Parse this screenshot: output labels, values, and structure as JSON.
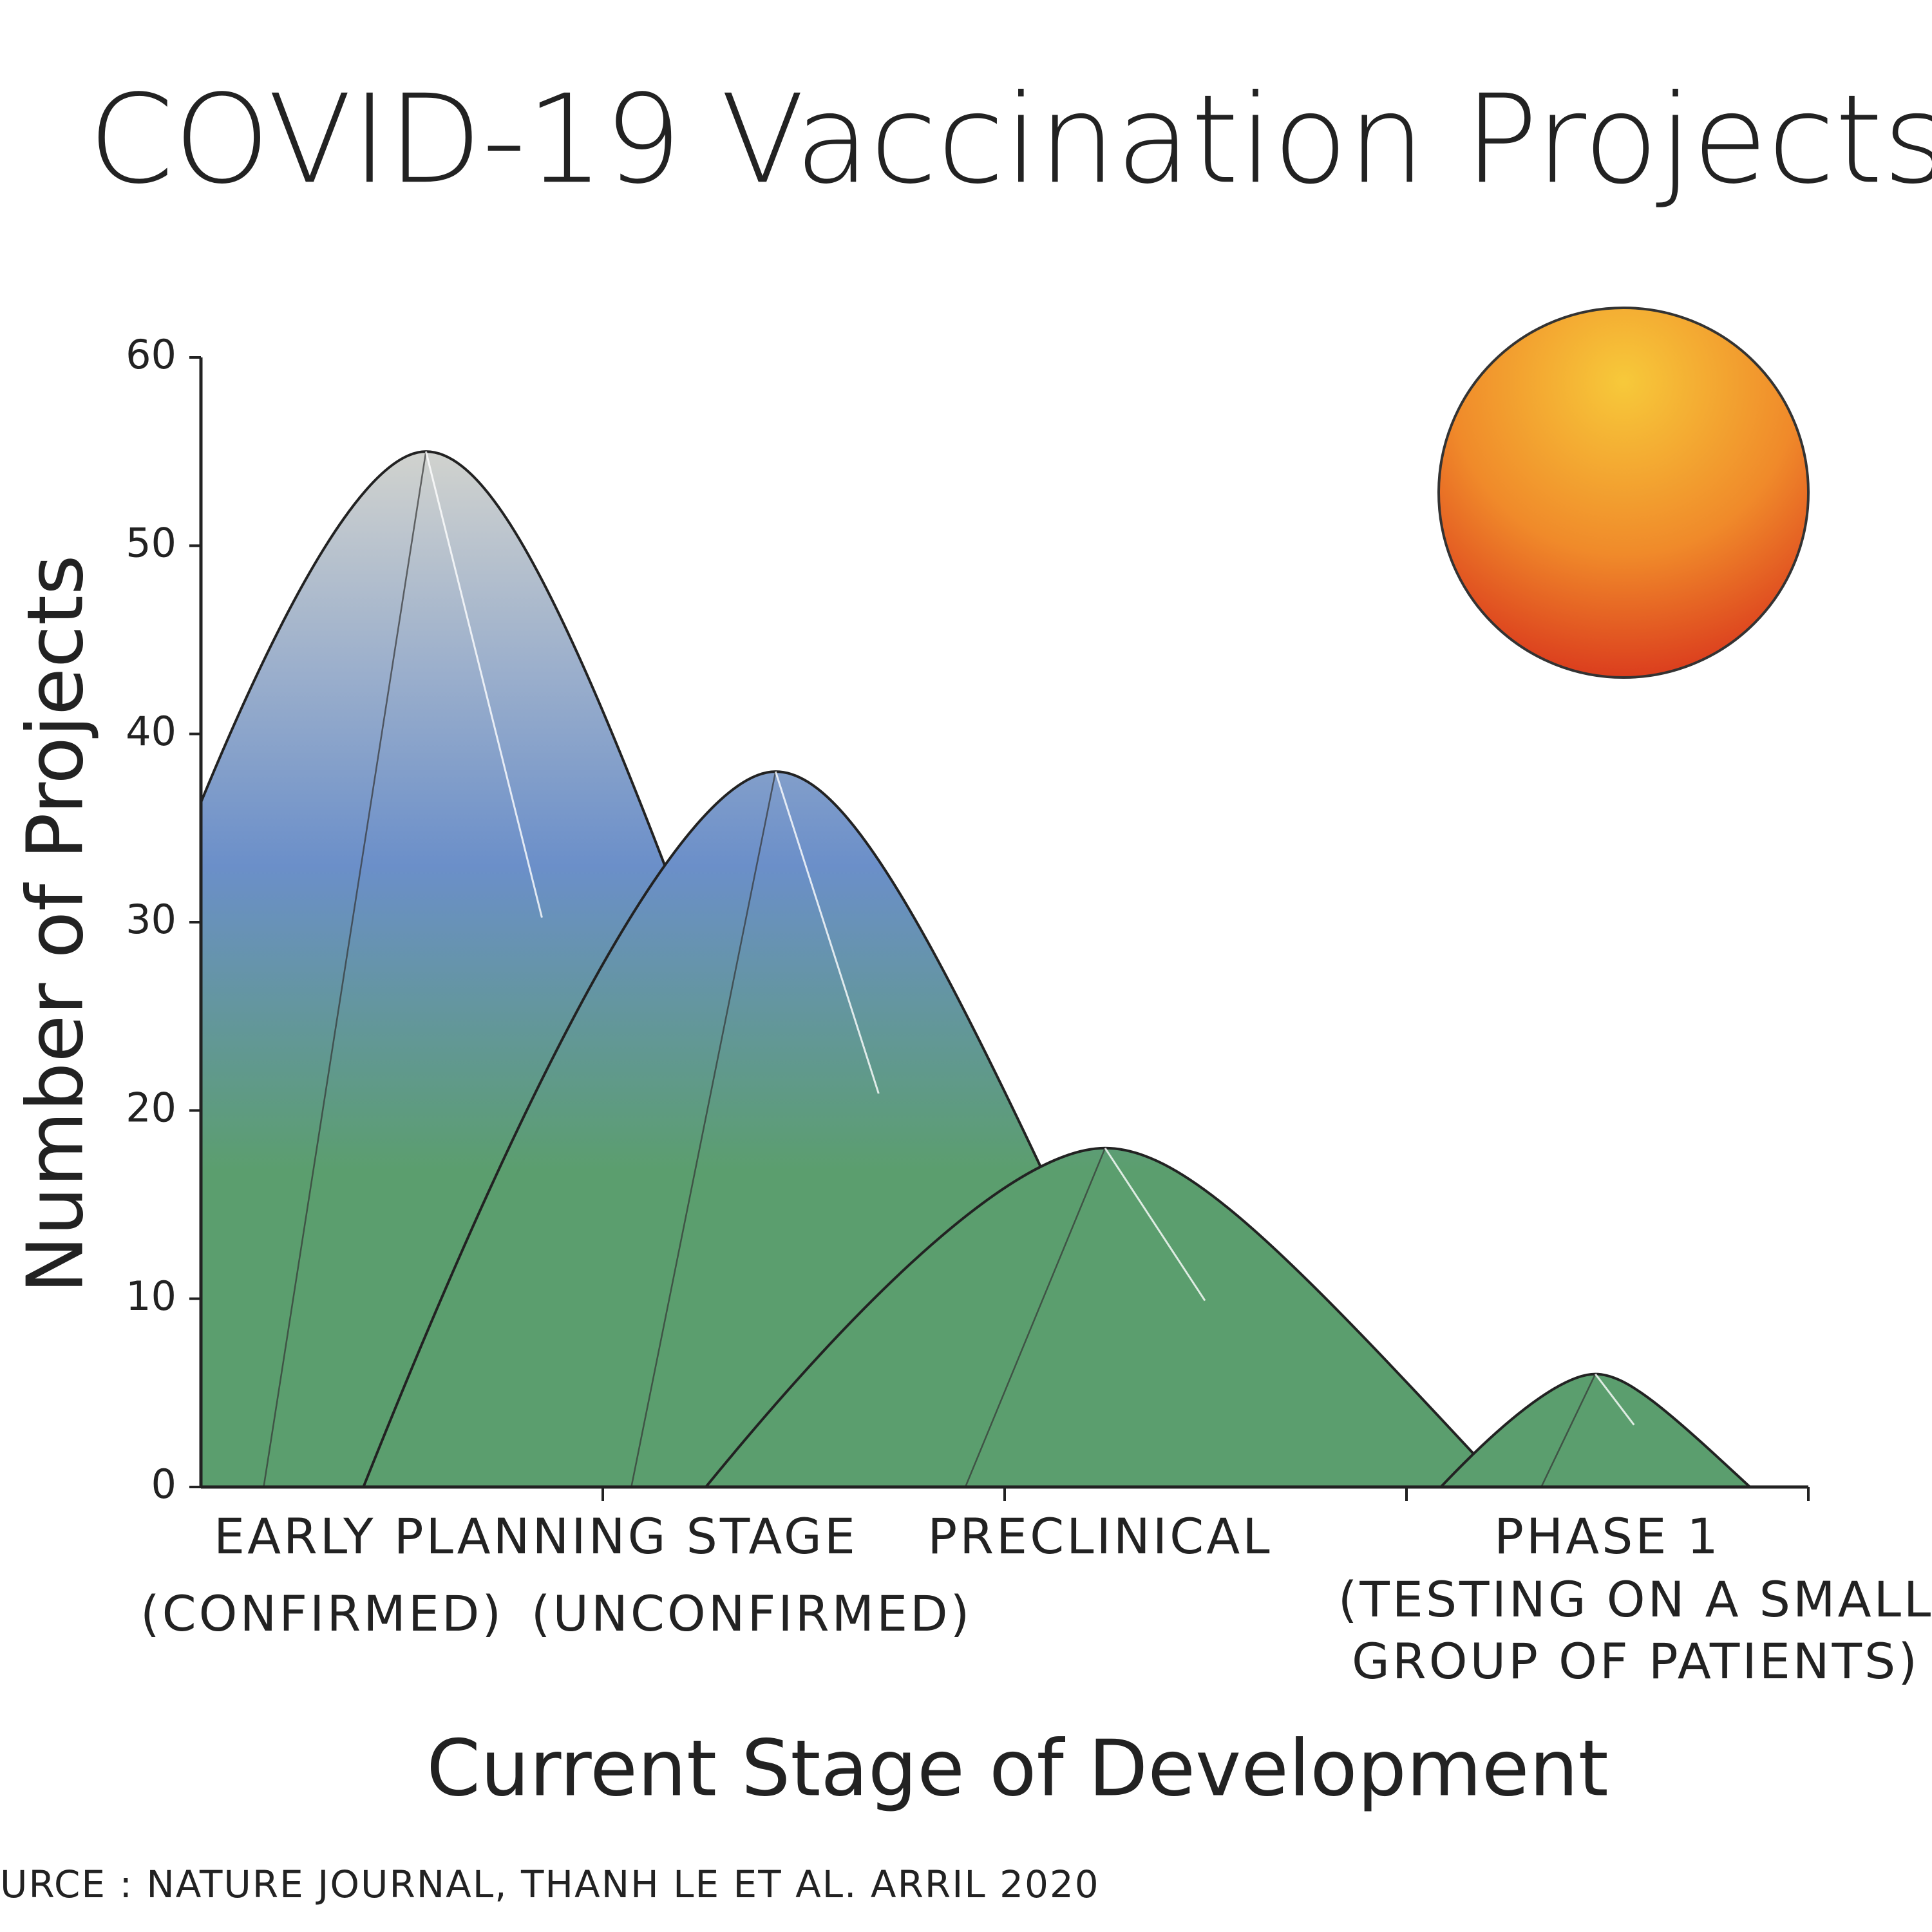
{
  "chart_data": {
    "type": "area",
    "title": "COVID-19 Vaccination Projects",
    "y_label": "Number of Projects",
    "x_label": "Current Stage of Development",
    "group_label": "EARLY PLANNING STAGE",
    "categories": [
      "(CONFIRMED)",
      "(UNCONFIRMED)",
      "PRECLINICAL",
      "PHASE 1"
    ],
    "phase1_note": [
      "(TESTING ON A SMALL",
      "GROUP OF PATIENTS)"
    ],
    "values": [
      55,
      38,
      18,
      6
    ],
    "ylim": [
      0,
      60
    ],
    "yticks": [
      0,
      10,
      20,
      30,
      40,
      50,
      60
    ],
    "colors": [
      "#e8e2d0",
      "#6b8fc9",
      "#5b9e6e"
    ],
    "source": "URCE : NATURE JOURNAL, THANH LE ET AL. ARRIL 2020"
  }
}
